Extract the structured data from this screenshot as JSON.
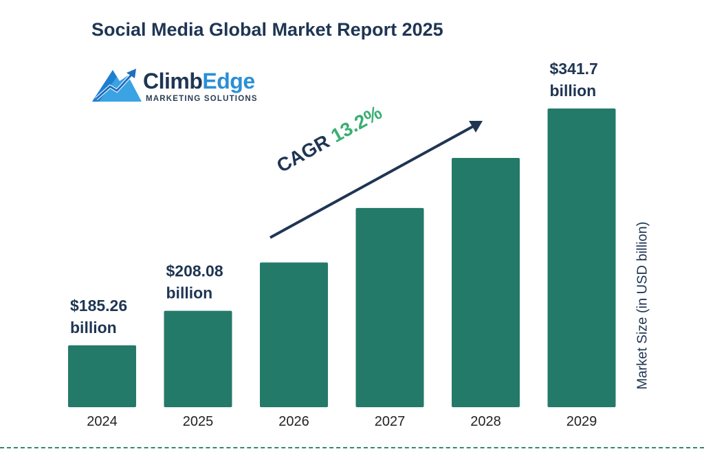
{
  "title": "Social Media Global Market Report 2025",
  "logo": {
    "name_part1": "Climb",
    "name_part2": "Edge",
    "tagline": "MARKETING SOLUTIONS"
  },
  "annotation": {
    "label": "CAGR",
    "value": "13.2%"
  },
  "colors": {
    "bar": "#237a68",
    "text": "#1f3553",
    "accent_green": "#3aae74",
    "logo_blue": "#2a8fd6"
  },
  "chart_data": {
    "type": "bar",
    "title": "Social Media Global Market Report 2025",
    "ylabel": "Market Size (in USD billion)",
    "xlabel": "",
    "categories": [
      "2024",
      "2025",
      "2026",
      "2027",
      "2028",
      "2029"
    ],
    "values": [
      185.26,
      208.08,
      240,
      276,
      309,
      341.7
    ],
    "data_labels": [
      {
        "line1": "$185.26",
        "line2": "billion"
      },
      {
        "line1": "$208.08",
        "line2": "billion"
      },
      null,
      null,
      null,
      {
        "line1": "$341.7",
        "line2": "billion"
      }
    ],
    "grid": false,
    "legend": "none"
  }
}
